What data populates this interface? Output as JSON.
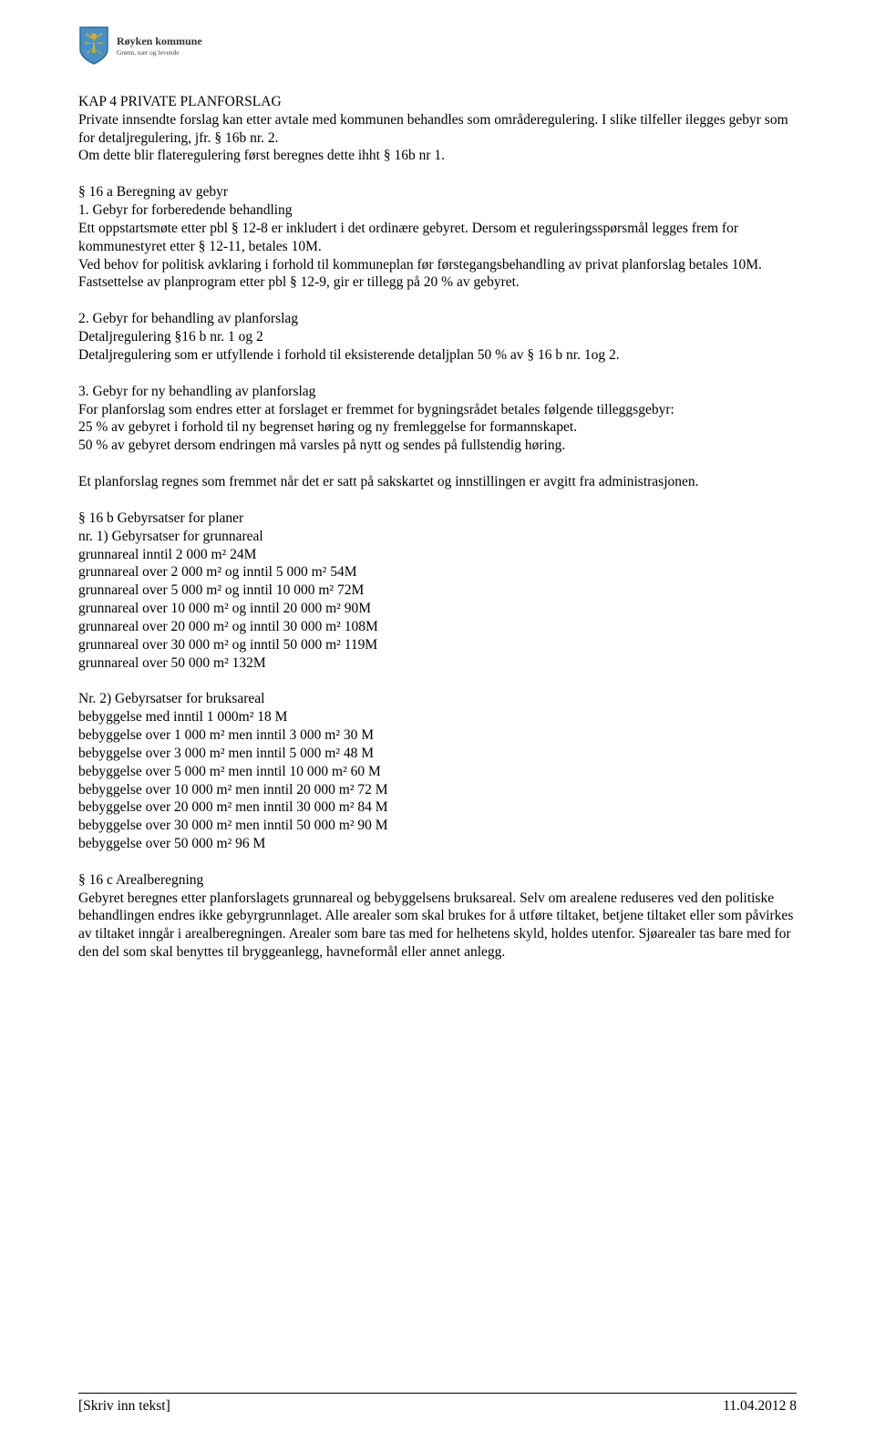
{
  "logo": {
    "title": "Røyken kommune",
    "subtitle": "Grønn, nær og levende",
    "shield_fill": "#4a90c2",
    "shield_stroke": "#2c6a9c",
    "emblem_fill": "#d4a83a"
  },
  "paragraphs": [
    [
      "KAP 4 PRIVATE PLANFORSLAG",
      "Private innsendte forslag kan etter avtale med kommunen behandles som områderegulering. I slike tilfeller ilegges gebyr som for detaljregulering, jfr. § 16b nr. 2.",
      "Om dette blir flateregulering først beregnes dette ihht § 16b nr 1."
    ],
    [
      "§ 16 a Beregning av gebyr",
      "1. Gebyr for forberedende behandling",
      "Ett oppstartsmøte etter pbl § 12-8 er inkludert i det ordinære gebyret. Dersom et reguleringsspørsmål legges frem for kommunestyret etter § 12-11, betales 10M.",
      "Ved behov for politisk avklaring i forhold til kommuneplan før førstegangsbehandling av privat planforslag betales 10M.",
      "Fastsettelse av planprogram etter pbl § 12-9, gir er tillegg på 20 % av gebyret."
    ],
    [
      "2. Gebyr for behandling av planforslag",
      "Detaljregulering §16 b nr. 1 og 2",
      "Detaljregulering som er utfyllende i forhold til eksisterende detaljplan 50 % av § 16 b nr. 1og 2."
    ],
    [
      "3. Gebyr for ny behandling av planforslag",
      "For planforslag som endres etter at forslaget er fremmet for bygningsrådet betales følgende tilleggsgebyr:",
      "25 % av gebyret i forhold til ny begrenset høring og ny fremleggelse for formannskapet.",
      "50 % av gebyret dersom endringen må varsles på nytt og sendes på fullstendig høring."
    ],
    [
      "Et planforslag regnes som fremmet når det er satt på sakskartet og innstillingen er avgitt fra administrasjonen."
    ],
    [
      "§ 16 b Gebyrsatser for planer",
      "nr. 1) Gebyrsatser for grunnareal",
      "grunnareal inntil 2 000 m² 24M",
      "grunnareal over 2 000 m² og inntil 5 000 m² 54M",
      "grunnareal over 5 000 m² og inntil 10 000 m² 72M",
      "grunnareal over 10 000 m² og inntil 20 000 m² 90M",
      "grunnareal over 20 000 m² og inntil 30 000 m² 108M",
      "grunnareal over 30 000 m² og inntil 50 000 m² 119M",
      "grunnareal over 50 000 m² 132M"
    ],
    [
      "Nr. 2) Gebyrsatser for bruksareal",
      "bebyggelse med inntil 1 000m² 18 M",
      "bebyggelse over 1 000 m² men inntil 3 000 m² 30 M",
      "bebyggelse over 3 000 m² men inntil 5 000 m² 48 M",
      "bebyggelse over 5 000 m² men inntil 10 000 m² 60 M",
      "bebyggelse over 10 000 m² men inntil 20 000 m² 72 M",
      "bebyggelse over 20 000 m² men inntil 30 000 m² 84 M",
      "bebyggelse over 30 000 m² men inntil 50 000 m² 90 M",
      "bebyggelse over 50 000 m² 96 M"
    ],
    [
      "§ 16 c Arealberegning",
      "Gebyret beregnes etter planforslagets grunnareal og bebyggelsens bruksareal. Selv om arealene reduseres ved den politiske behandlingen endres ikke gebyrgrunnlaget. Alle arealer som skal brukes for å utføre tiltaket, betjene tiltaket eller som påvirkes av tiltaket inngår i arealberegningen. Arealer som bare tas med for helhetens skyld, holdes utenfor. Sjøarealer tas bare med for den del som skal benyttes til bryggeanlegg, havneformål eller annet anlegg."
    ]
  ],
  "footer": {
    "left": "[Skriv inn tekst]",
    "right": "11.04.2012   8"
  }
}
